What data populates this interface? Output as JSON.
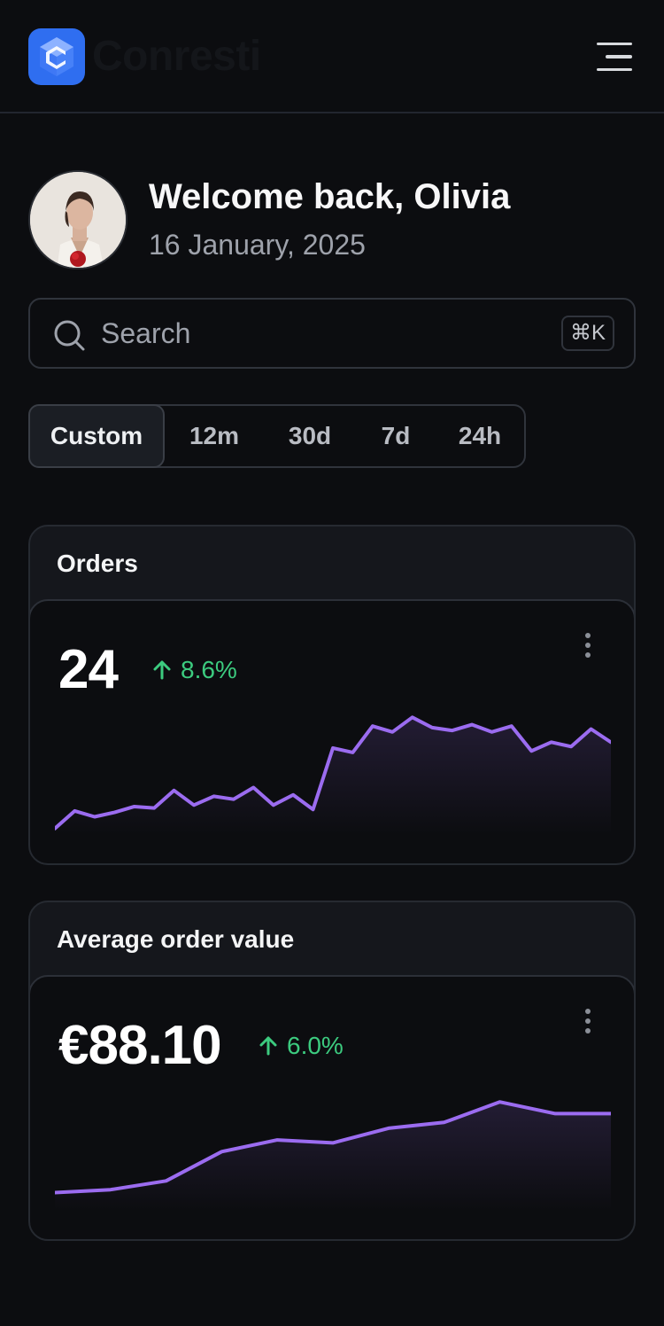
{
  "brand": {
    "name": "Conresti",
    "logo_color": "#2f6ef0",
    "logo_icon": "cube-c-logo-icon"
  },
  "header": {
    "menu_icon": "hamburger-menu-icon"
  },
  "user": {
    "welcome": "Welcome back, Olivia",
    "date": "16 January, 2025"
  },
  "search": {
    "placeholder": "Search",
    "value": "",
    "shortcut": "⌘K"
  },
  "filters": {
    "selected": "Custom",
    "options": [
      "Custom",
      "12m",
      "30d",
      "7d",
      "24h"
    ]
  },
  "colors": {
    "accent_line": "#9b6cf0",
    "positive": "#3ccb7f",
    "background": "#0c0d10"
  },
  "cards": [
    {
      "title": "Orders",
      "value": "24",
      "change": "8.6%",
      "trend": "up"
    },
    {
      "title": "Average order value",
      "value": "€88.10",
      "change": "6.0%",
      "trend": "up"
    }
  ],
  "chart_data": [
    {
      "type": "area",
      "series": [
        {
          "values": [
            2,
            14,
            10,
            13,
            17,
            16,
            28,
            18,
            24,
            22,
            30,
            18,
            25,
            15,
            57,
            54,
            72,
            68,
            78,
            71,
            69,
            73,
            68,
            72,
            55,
            61,
            58,
            70,
            61
          ]
        }
      ],
      "ylim": [
        0,
        80
      ]
    },
    {
      "type": "area",
      "series": [
        {
          "values": [
            20,
            21,
            24,
            34,
            38,
            37,
            42,
            44,
            51,
            47,
            47
          ]
        }
      ],
      "ylim": [
        15,
        55
      ]
    }
  ]
}
